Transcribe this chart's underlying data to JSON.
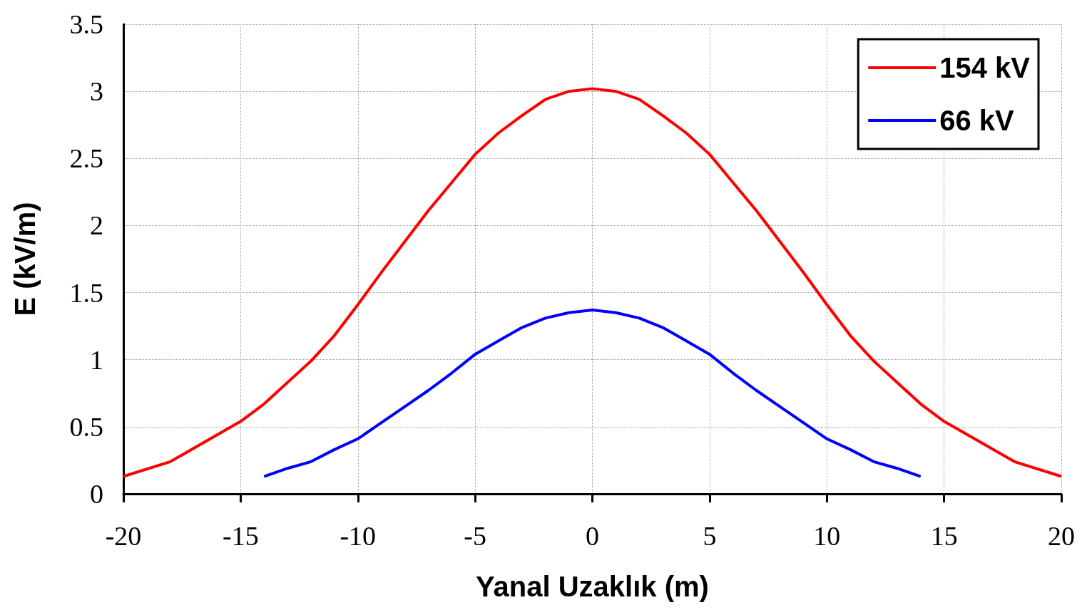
{
  "chart_data": {
    "type": "line",
    "xlabel": "Yanal Uzaklık (m)",
    "ylabel": "E (kV/m)",
    "x": [
      -20,
      -18,
      -15,
      -14,
      -12,
      -11,
      -10,
      -9,
      -8,
      -7,
      -6,
      -5,
      -4,
      -3,
      -2,
      -1,
      0,
      1,
      2,
      3,
      4,
      5,
      6,
      7,
      8,
      9,
      10,
      11,
      12,
      14,
      15,
      18,
      20
    ],
    "series": [
      {
        "name": "154 kV",
        "color": "#ff0000",
        "values": [
          0.13,
          0.24,
          0.54,
          0.67,
          0.99,
          1.18,
          1.41,
          1.65,
          1.88,
          2.11,
          2.32,
          2.53,
          2.69,
          2.82,
          2.94,
          3.0,
          3.02,
          3.0,
          2.94,
          2.82,
          2.69,
          2.53,
          2.32,
          2.11,
          1.88,
          1.65,
          1.41,
          1.18,
          0.99,
          0.67,
          0.54,
          0.24,
          0.13
        ]
      },
      {
        "name": "66 kV",
        "color": "#0000ff",
        "x": [
          -14,
          -13,
          -12,
          -11,
          -10,
          -9,
          -8,
          -7,
          -6,
          -5,
          -4,
          -3,
          -2,
          -1,
          0,
          1,
          2,
          3,
          4,
          5,
          6,
          7,
          8,
          9,
          10,
          11,
          12,
          13,
          14
        ],
        "values": [
          0.13,
          0.19,
          0.24,
          0.33,
          0.41,
          0.53,
          0.65,
          0.77,
          0.9,
          1.04,
          1.14,
          1.24,
          1.31,
          1.35,
          1.37,
          1.35,
          1.31,
          1.24,
          1.14,
          1.04,
          0.9,
          0.77,
          0.65,
          0.53,
          0.41,
          0.33,
          0.24,
          0.19,
          0.13
        ]
      }
    ],
    "xlim": [
      -20,
      20
    ],
    "xticks": [
      -20,
      -15,
      -10,
      -5,
      0,
      5,
      10,
      15,
      20
    ],
    "ylim": [
      0,
      3.5
    ],
    "yticks": [
      0,
      0.5,
      1,
      1.5,
      2,
      2.5,
      3,
      3.5
    ],
    "grid": true,
    "legend": "top right",
    "marker": "none",
    "line_style": "solid"
  }
}
